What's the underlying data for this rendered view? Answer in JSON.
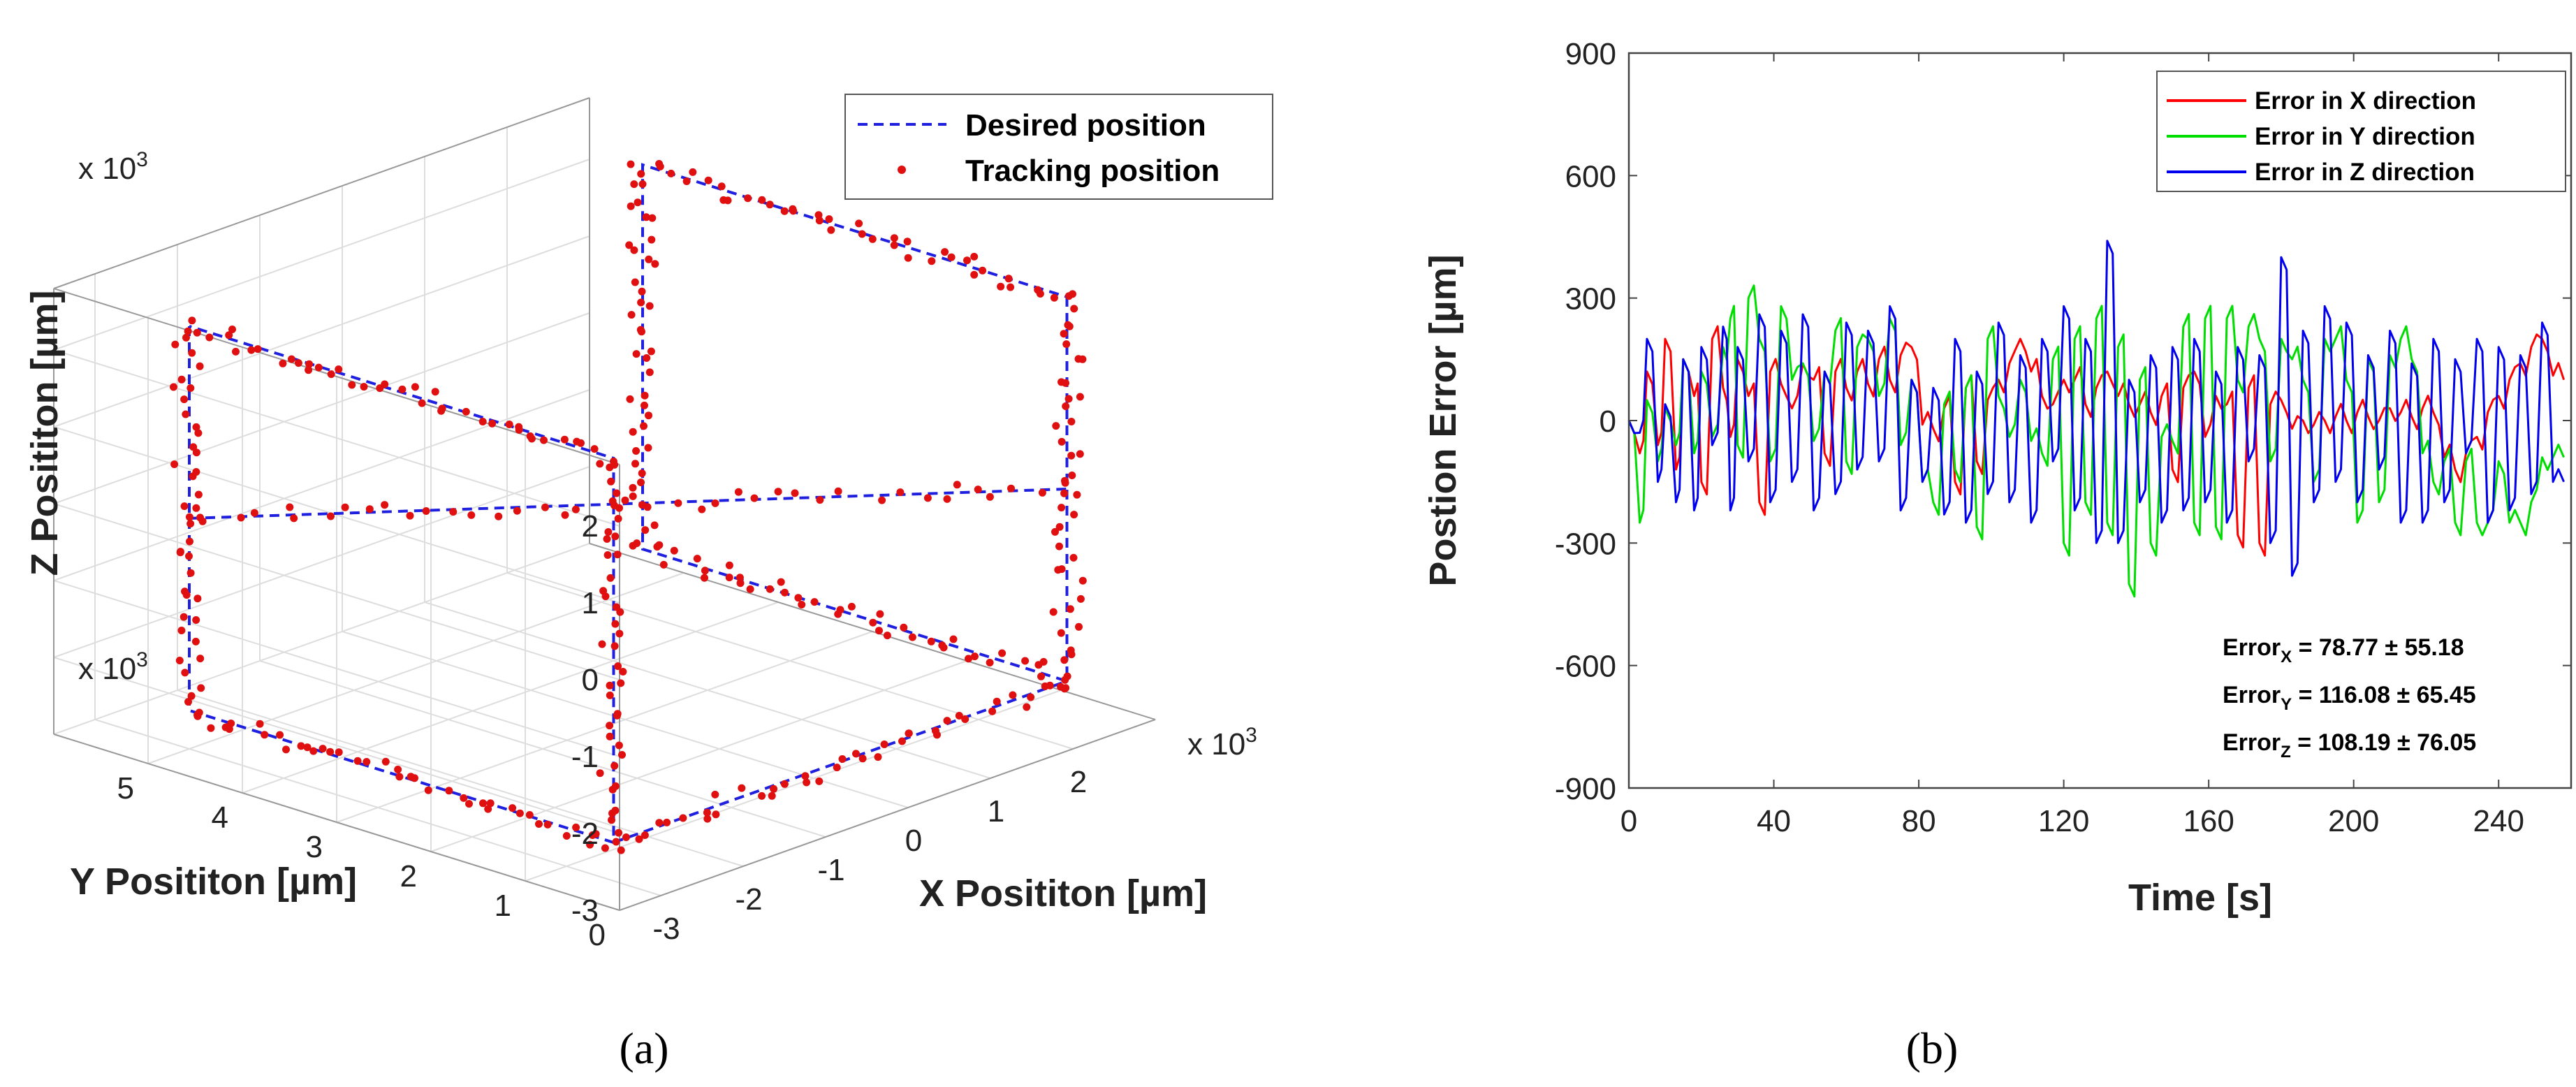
{
  "panel_a": {
    "caption": "(a)",
    "legend": [
      "Desired position",
      "Tracking position"
    ],
    "zlabel": "Z Posititon [µm]",
    "ylabel": "Y Posititon [µm]",
    "xlabel": "X Posititon [µm]",
    "scale_label": "x 10",
    "scale_exp": "3",
    "colors": {
      "desired": "#1f1fe0",
      "tracking": "#e01010",
      "grid": "#dddddd"
    }
  },
  "panel_b": {
    "caption": "(b)",
    "stats": [
      {
        "sub": "X",
        "value": " = 78.77 ± 55.18"
      },
      {
        "sub": "Y",
        "value": " = 116.08 ± 65.45"
      },
      {
        "sub": "Z",
        "value": " = 108.19 ± 76.05"
      }
    ],
    "stat_prefix": "Error"
  },
  "chart_data": [
    {
      "type": "scatter",
      "title": "",
      "xlabel": "X Posititon [µm]",
      "ylabel": "Y Posititon [µm]",
      "zlabel": "Z Posititon [µm]",
      "axis_multiplier": "x 10^3",
      "xlim": [
        -3.5,
        3
      ],
      "ylim": [
        0,
        6
      ],
      "zlim": [
        -3,
        2.8
      ],
      "x_ticks": [
        "-3",
        "-2",
        "-1",
        "0",
        "1",
        "2"
      ],
      "y_ticks": [
        "0",
        "1",
        "2",
        "3",
        "4",
        "5"
      ],
      "z_ticks": [
        "-3",
        "-2",
        "-1",
        "0",
        "1",
        "2"
      ],
      "legend": [
        "Desired position",
        "Tracking position"
      ],
      "series": [
        {
          "name": "Desired position",
          "style": "dashed-line",
          "segments": [
            [
              [
                -3,
                5,
                2.5
              ],
              [
                -3,
                5,
                -2.5
              ],
              [
                -3,
                0.5,
                -2.5
              ],
              [
                -3,
                0.5,
                2.5
              ],
              [
                -3,
                5,
                2.5
              ]
            ],
            [
              [
                -3,
                5,
                0
              ],
              [
                2.5,
                0.5,
                0
              ]
            ],
            [
              [
                2.5,
                0.5,
                2.5
              ],
              [
                2.5,
                0.5,
                -2.5
              ],
              [
                2.5,
                5,
                -2.5
              ],
              [
                2.5,
                5,
                2.5
              ],
              [
                2.5,
                0.5,
                2.5
              ]
            ],
            [
              [
                -3,
                0.5,
                -2.5
              ],
              [
                2.5,
                0.5,
                -2.5
              ]
            ]
          ]
        },
        {
          "name": "Tracking position",
          "style": "markers",
          "note": "noisy tracking samples along the desired path"
        }
      ]
    },
    {
      "type": "line",
      "title": "",
      "xlabel": "Time [s]",
      "ylabel": "Postion Error [µm]",
      "xlim": [
        0,
        260
      ],
      "ylim": [
        -900,
        900
      ],
      "x_ticks": [
        0,
        40,
        80,
        120,
        160,
        200,
        240
      ],
      "y_ticks": [
        900,
        600,
        300,
        0,
        -300,
        -600,
        -900
      ],
      "legend": [
        "Error in X direction",
        "Error in Y direction",
        "Error in Z direction"
      ],
      "series": [
        {
          "name": "Error in X direction",
          "color": "#ff0000",
          "x": [
            0,
            3,
            5,
            8,
            10,
            13,
            15,
            18,
            20,
            23,
            26,
            28,
            30,
            33,
            36,
            39,
            42,
            45,
            48,
            51,
            54,
            57,
            60,
            63,
            66,
            69,
            72,
            75,
            78,
            81,
            84,
            87,
            90,
            93,
            96,
            99,
            102,
            105,
            108,
            111,
            114,
            117,
            120,
            123,
            126,
            129,
            132,
            135,
            138,
            141,
            144,
            147,
            150,
            153,
            156,
            159,
            162,
            165,
            168,
            171,
            174,
            177,
            180,
            183,
            186,
            189,
            192,
            195,
            198,
            201,
            204,
            207,
            210,
            213,
            216,
            219,
            222,
            225,
            228,
            231,
            234,
            237,
            240,
            243,
            246,
            249,
            252,
            255,
            258
          ],
          "values": [
            0,
            -80,
            120,
            -60,
            200,
            -120,
            150,
            60,
            -150,
            200,
            80,
            -40,
            150,
            60,
            -200,
            120,
            90,
            30,
            140,
            100,
            -80,
            120,
            80,
            120,
            90,
            150,
            100,
            160,
            180,
            -10,
            -20,
            30,
            -150,
            80,
            -100,
            50,
            100,
            140,
            200,
            120,
            60,
            40,
            100,
            100,
            40,
            80,
            120,
            60,
            40,
            40,
            20,
            60,
            -120,
            80,
            120,
            -40,
            60,
            40,
            -280,
            80,
            -300,
            40,
            50,
            -20,
            0,
            -10,
            0,
            10,
            0,
            20,
            10,
            0,
            30,
            20,
            10,
            30,
            20,
            -90,
            -120,
            -80,
            -40,
            20,
            60,
            100,
            140,
            180,
            200,
            110,
            100
          ]
        },
        {
          "name": "Error in Y direction",
          "color": "#00dd00",
          "x": [
            0,
            3,
            5,
            8,
            10,
            13,
            15,
            18,
            20,
            23,
            26,
            28,
            30,
            33,
            36,
            39,
            42,
            45,
            48,
            51,
            54,
            57,
            60,
            63,
            66,
            69,
            72,
            75,
            78,
            81,
            84,
            87,
            90,
            93,
            96,
            99,
            102,
            105,
            108,
            111,
            114,
            117,
            120,
            123,
            126,
            129,
            132,
            135,
            138,
            141,
            144,
            147,
            150,
            153,
            156,
            159,
            162,
            165,
            168,
            171,
            174,
            177,
            180,
            183,
            186,
            189,
            192,
            195,
            198,
            201,
            204,
            207,
            210,
            213,
            216,
            219,
            222,
            225,
            228,
            231,
            234,
            237,
            240,
            243,
            246,
            249,
            252,
            255,
            258
          ],
          "values": [
            0,
            -250,
            50,
            -100,
            30,
            -60,
            150,
            -80,
            120,
            -40,
            180,
            250,
            -60,
            300,
            200,
            -100,
            280,
            100,
            140,
            -50,
            120,
            220,
            -100,
            180,
            200,
            60,
            250,
            -60,
            100,
            -150,
            -200,
            40,
            -120,
            80,
            -260,
            200,
            60,
            -40,
            100,
            -50,
            -80,
            150,
            -300,
            200,
            -200,
            250,
            -250,
            180,
            -400,
            100,
            -300,
            -40,
            -50,
            230,
            -250,
            250,
            -260,
            250,
            100,
            230,
            200,
            -100,
            200,
            150,
            100,
            -150,
            200,
            200,
            100,
            -250,
            150,
            -200,
            160,
            200,
            150,
            -80,
            -150,
            -100,
            -250,
            -100,
            -250,
            -250,
            -100,
            -250,
            -250,
            -200,
            -90,
            -90,
            -90
          ]
        },
        {
          "name": "Error in Z direction",
          "color": "#0000ee",
          "x": [
            0,
            3,
            5,
            8,
            10,
            13,
            15,
            18,
            20,
            23,
            26,
            28,
            30,
            33,
            36,
            39,
            42,
            45,
            48,
            51,
            54,
            57,
            60,
            63,
            66,
            69,
            72,
            75,
            78,
            81,
            84,
            87,
            90,
            93,
            96,
            99,
            102,
            105,
            108,
            111,
            114,
            117,
            120,
            123,
            126,
            129,
            132,
            135,
            138,
            141,
            144,
            147,
            150,
            153,
            156,
            159,
            162,
            165,
            168,
            171,
            174,
            177,
            180,
            183,
            186,
            189,
            192,
            195,
            198,
            201,
            204,
            207,
            210,
            213,
            216,
            219,
            222,
            225,
            228,
            231,
            234,
            237,
            240,
            243,
            246,
            249,
            252,
            255,
            258
          ],
          "values": [
            0,
            -30,
            200,
            -150,
            40,
            -200,
            150,
            -220,
            180,
            -60,
            230,
            -220,
            180,
            -100,
            260,
            -200,
            220,
            -150,
            260,
            -220,
            120,
            -180,
            240,
            -120,
            220,
            -100,
            280,
            -220,
            100,
            -150,
            80,
            -230,
            200,
            -250,
            120,
            -180,
            240,
            -200,
            160,
            -250,
            200,
            -100,
            280,
            -220,
            200,
            -300,
            440,
            -300,
            100,
            -200,
            160,
            -250,
            180,
            -220,
            200,
            -200,
            120,
            -250,
            180,
            -100,
            160,
            -300,
            400,
            -380,
            220,
            -200,
            280,
            -150,
            240,
            -200,
            160,
            -120,
            220,
            -250,
            140,
            -250,
            200,
            -200,
            150,
            -80,
            200,
            -250,
            180,
            -220,
            160,
            -180,
            240,
            -150,
            -150
          ]
        }
      ]
    }
  ],
  "chart_b_labels": {
    "xlabel": "Time [s]",
    "ylabel": "Postion Error [µm]"
  }
}
